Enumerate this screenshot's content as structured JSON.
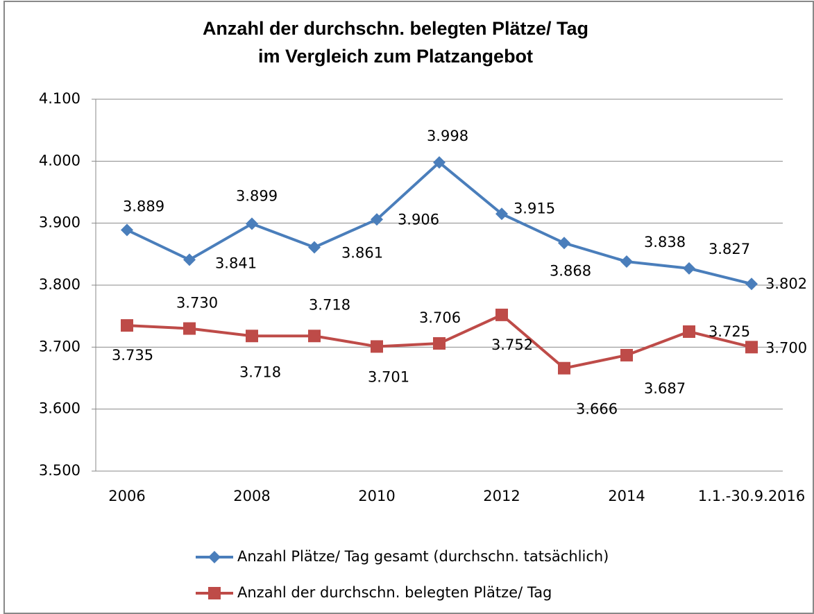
{
  "chart_data": {
    "type": "line",
    "title": [
      "Anzahl der durchschn. belegten Plätze/ Tag",
      "im Vergleich zum Platzangebot"
    ],
    "categories": [
      "2006",
      null,
      "2008",
      null,
      "2010",
      null,
      "2012",
      null,
      "2014",
      null,
      "1.1.-30.9.2016"
    ],
    "series": [
      {
        "name": "Anzahl Plätze/ Tag gesamt (durchschn. tatsächlich)",
        "color": "#4a7ebb",
        "marker": "diamond",
        "values": [
          3889,
          3841,
          3899,
          3861,
          3906,
          3998,
          3915,
          3868,
          3838,
          3827,
          3802
        ],
        "value_labels": [
          "3.889",
          "3.841",
          "3.899",
          "3.861",
          "3.906",
          "3.998",
          "3.915",
          "3.868",
          "3.838",
          "3.827",
          "3.802"
        ]
      },
      {
        "name": "Anzahl der durchschn. belegten Plätze/ Tag",
        "color": "#be4b48",
        "marker": "square",
        "values": [
          3735,
          3730,
          3718,
          3718,
          3701,
          3706,
          3752,
          3666,
          3687,
          3725,
          3700
        ],
        "value_labels": [
          "3.735",
          "3.730",
          "3.718",
          "3.718",
          "3.701",
          "3.706",
          "3.752",
          "3.666",
          "3.687",
          "3.725",
          "3.700"
        ]
      }
    ],
    "ylim": [
      3500,
      4100
    ],
    "yticks": [
      {
        "value": 3500,
        "label": "3.500"
      },
      {
        "value": 3600,
        "label": "3.600"
      },
      {
        "value": 3700,
        "label": "3.700"
      },
      {
        "value": 3800,
        "label": "3.800"
      },
      {
        "value": 3900,
        "label": "3.900"
      },
      {
        "value": 4000,
        "label": "4.000"
      },
      {
        "value": 4100,
        "label": "4.100"
      }
    ],
    "grid": true,
    "legend": "bottom"
  }
}
